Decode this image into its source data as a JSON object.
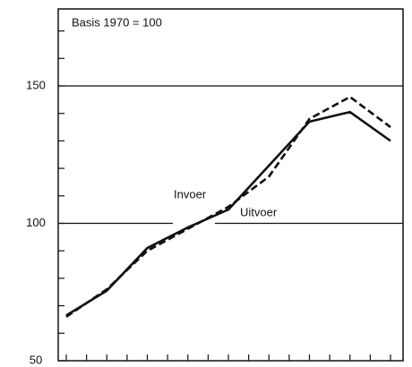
{
  "chart_data": {
    "type": "line",
    "annotations": [
      "Basis 1970 = 100",
      "Invoer",
      "Uitvoer"
    ],
    "categories": [
      null,
      null,
      null,
      null,
      null,
      null,
      null,
      null,
      null
    ],
    "series": [
      {
        "name": "Uitvoer",
        "color": "#111111",
        "style": "solid",
        "values": [
          66.5,
          75.5,
          91,
          98.5,
          105,
          121,
          137,
          140.5,
          130
        ]
      },
      {
        "name": "Invoer",
        "color": "#111111",
        "style": "dashed",
        "values": [
          66,
          76,
          90,
          98,
          106,
          117,
          138,
          146,
          135
        ]
      }
    ],
    "ylim": [
      50,
      178
    ],
    "yticks": [
      50,
      100,
      150
    ],
    "yminor_ticks": [
      60,
      70,
      80,
      90,
      110,
      120,
      130,
      140,
      160,
      170
    ],
    "grid": true
  }
}
